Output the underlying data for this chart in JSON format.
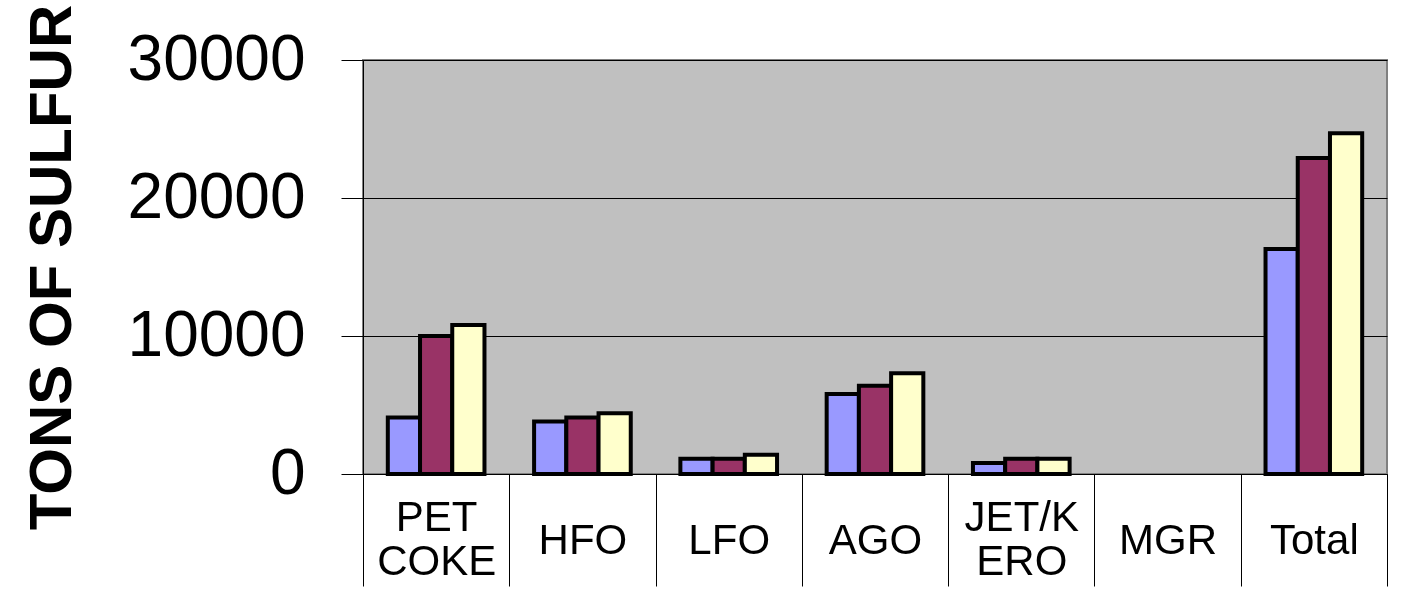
{
  "chart_data": {
    "type": "bar",
    "ylabel": "TONS OF SULFUR",
    "categories": [
      "PET\nCOKE",
      "HFO",
      "LFO",
      "AGO",
      "JET/K\nERO",
      "MGR",
      "Total"
    ],
    "series": [
      {
        "color": "#9999ff",
        "values": [
          4100,
          3800,
          1100,
          5800,
          800,
          null,
          16300
        ]
      },
      {
        "color": "#993366",
        "values": [
          10000,
          4100,
          1100,
          6400,
          1100,
          null,
          22900
        ]
      },
      {
        "color": "#ffffcc",
        "values": [
          10800,
          4400,
          1400,
          7300,
          1100,
          null,
          24700
        ]
      }
    ],
    "ylim": [
      0,
      30000
    ],
    "yticks": [
      0,
      10000,
      20000,
      30000
    ],
    "grid": "y"
  }
}
